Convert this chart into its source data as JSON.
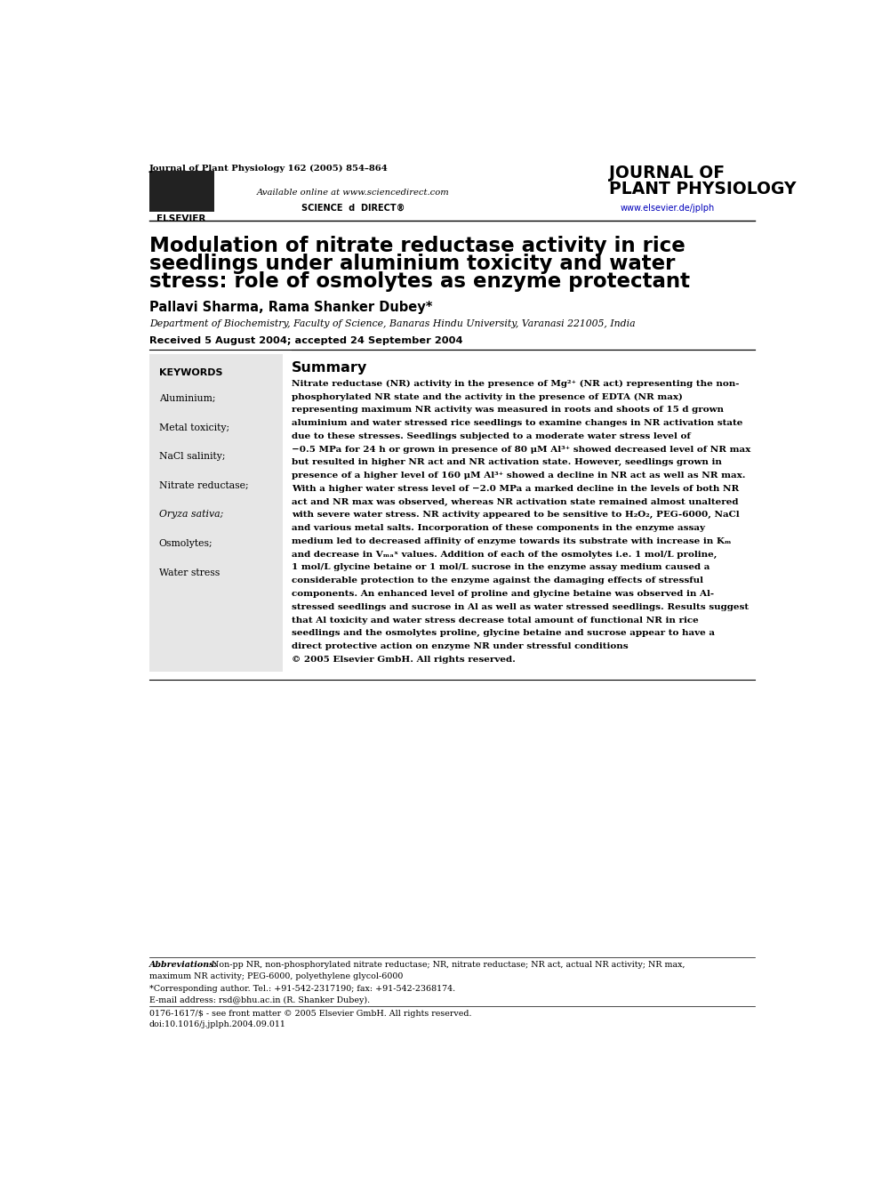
{
  "page_width": 9.92,
  "page_height": 13.23,
  "bg_color": "#ffffff",
  "journal_ref": "Journal of Plant Physiology 162 (2005) 854–864",
  "journal_name_line1": "JOURNAL OF",
  "journal_name_line2": "PLANT PHYSIOLOGY",
  "journal_url": "www.elsevier.de/jplph",
  "available_online": "Available online at www.sciencedirect.com",
  "elsevier_label": "ELSEVIER",
  "science_direct": "SCIENCE  d  DIRECT®",
  "article_title_line1": "Modulation of nitrate reductase activity in rice",
  "article_title_line2": "seedlings under aluminium toxicity and water",
  "article_title_line3": "stress: role of osmolytes as enzyme protectant",
  "authors": "Pallavi Sharma, Rama Shanker Dubey*",
  "affiliation": "Department of Biochemistry, Faculty of Science, Banaras Hindu University, Varanasi 221005, India",
  "received": "Received 5 August 2004; accepted 24 September 2004",
  "keywords_title": "KEYWORDS",
  "keywords": [
    "Aluminium;",
    "Metal toxicity;",
    "NaCl salinity;",
    "Nitrate reductase;",
    "Oryza sativa;",
    "Osmolytes;",
    "Water stress"
  ],
  "keywords_italic": [
    false,
    false,
    false,
    false,
    true,
    false,
    false
  ],
  "summary_title": "Summary",
  "summary_text_lines": [
    "Nitrate reductase (NR) activity in the presence of Mg²⁺ (NR act) representing the non-",
    "phosphorylated NR state and the activity in the presence of EDTA (NR max)",
    "representing maximum NR activity was measured in roots and shoots of 15 d grown",
    "aluminium and water stressed rice seedlings to examine changes in NR activation state",
    "due to these stresses. Seedlings subjected to a moderate water stress level of",
    "−0.5 MPa for 24 h or grown in presence of 80 μM Al³⁺ showed decreased level of NR max",
    "but resulted in higher NR act and NR activation state. However, seedlings grown in",
    "presence of a higher level of 160 μM Al³⁺ showed a decline in NR act as well as NR max.",
    "With a higher water stress level of −2.0 MPa a marked decline in the levels of both NR",
    "act and NR max was observed, whereas NR activation state remained almost unaltered",
    "with severe water stress. NR activity appeared to be sensitive to H₂O₂, PEG-6000, NaCl",
    "and various metal salts. Incorporation of these components in the enzyme assay",
    "medium led to decreased affinity of enzyme towards its substrate with increase in Kₘ",
    "and decrease in Vₘₐˣ values. Addition of each of the osmolytes i.e. 1 mol/L proline,",
    "1 mol/L glycine betaine or 1 mol/L sucrose in the enzyme assay medium caused a",
    "considerable protection to the enzyme against the damaging effects of stressful",
    "components. An enhanced level of proline and glycine betaine was observed in Al-",
    "stressed seedlings and sucrose in Al as well as water stressed seedlings. Results suggest",
    "that Al toxicity and water stress decrease total amount of functional NR in rice",
    "seedlings and the osmolytes proline, glycine betaine and sucrose appear to have a",
    "direct protective action on enzyme NR under stressful conditions",
    "© 2005 Elsevier GmbH. All rights reserved."
  ],
  "abbrev_label": "Abbreviations:",
  "abbrev_text": " Non-pp NR, non-phosphorylated nitrate reductase; NR, nitrate reductase; NR act, actual NR activity; NR max,",
  "abbrev_text2": "maximum NR activity; PEG-6000, polyethylene glycol-6000",
  "corresponding_text": "*Corresponding author. Tel.: +91-542-2317190; fax: +91-542-2368174.",
  "email_text": "E-mail address: rsd@bhu.ac.in (R. Shanker Dubey).",
  "footer_text1": "0176-1617/$ - see front matter © 2005 Elsevier GmbH. All rights reserved.",
  "footer_text2": "doi:10.1016/j.jplph.2004.09.011"
}
